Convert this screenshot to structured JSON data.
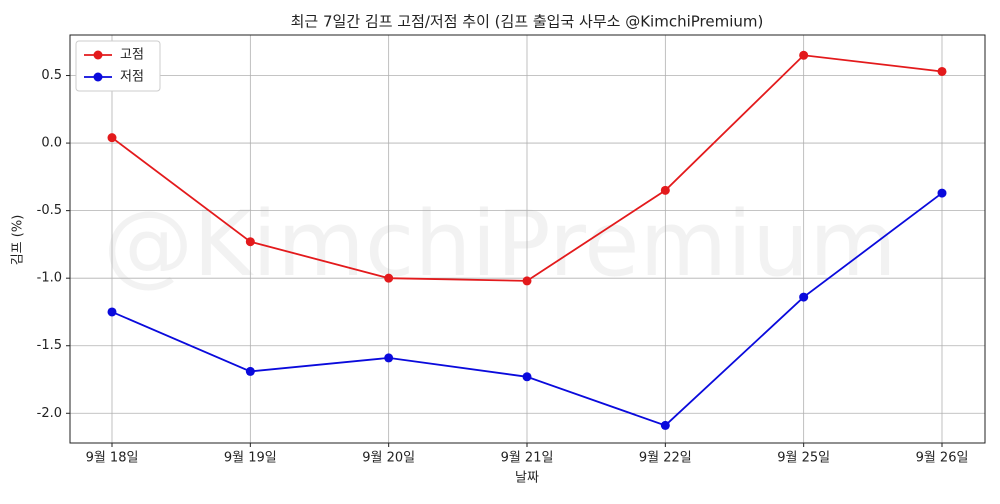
{
  "chart_data": {
    "type": "line",
    "title": "최근 7일간 김프 고점/저점 추이 (김프 출입국 사무소 @KimchiPremium)",
    "watermark": "@KimchiPremium",
    "x_label": "날짜",
    "y_label": "김프 (%)",
    "categories": [
      "9월 18일",
      "9월 19일",
      "9월 20일",
      "9월 21일",
      "9월 22일",
      "9월 25일",
      "9월 26일"
    ],
    "series": [
      {
        "name": "고점",
        "color": "#e31a1c",
        "values": [
          0.04,
          -0.73,
          -1.0,
          -1.02,
          -0.35,
          0.65,
          0.53
        ]
      },
      {
        "name": "저점",
        "color": "#0a0adc",
        "values": [
          -1.25,
          -1.69,
          -1.59,
          -1.73,
          -2.09,
          -1.14,
          -0.37
        ]
      }
    ],
    "ylim": [
      -2.22,
      0.8
    ],
    "yticks": [
      0.5,
      {
        "value": 0,
        "label": "0.0"
      },
      -0.5,
      {
        "value": -1,
        "label": "-1.0"
      },
      -1.5,
      {
        "value": -2,
        "label": "-2.0"
      }
    ],
    "grid": true,
    "legend": "upper left"
  }
}
